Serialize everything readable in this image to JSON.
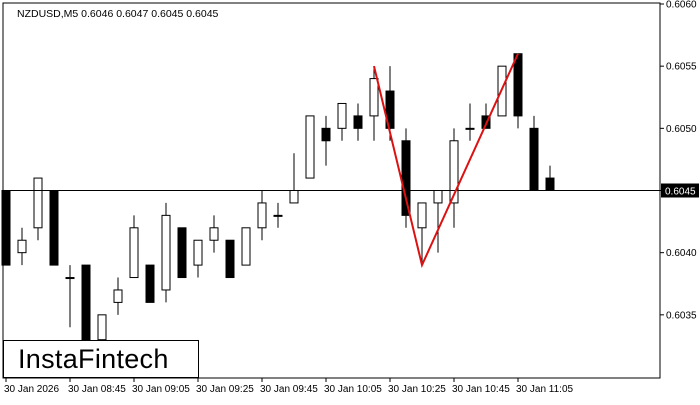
{
  "header": {
    "symbol_line": "NZDUSD,M5  0.6046 0.6047 0.6045 0.6045"
  },
  "logo": {
    "text": "InstaFintech"
  },
  "colors": {
    "background": "#ffffff",
    "axis": "#000000",
    "bull_body": "#ffffff",
    "bear_body": "#000000",
    "pattern_line": "#dd1111",
    "price_label_bg": "#000000",
    "price_label_text": "#ffffff"
  },
  "chart_data": {
    "type": "candlestick",
    "symbol": "NZDUSD",
    "timeframe": "M5",
    "ylim": [
      0.603,
      0.606
    ],
    "y_ticks": [
      "0.6060",
      "0.6055",
      "0.6050",
      "0.6045",
      "0.6040",
      "0.6035"
    ],
    "x_ticks": [
      {
        "label": "30 Jan 2026",
        "index": 0
      },
      {
        "label": "30 Jan 08:45",
        "index": 4
      },
      {
        "label": "30 Jan 09:05",
        "index": 8
      },
      {
        "label": "30 Jan 09:25",
        "index": 12
      },
      {
        "label": "30 Jan 09:45",
        "index": 16
      },
      {
        "label": "30 Jan 10:05",
        "index": 20
      },
      {
        "label": "30 Jan 10:25",
        "index": 24
      },
      {
        "label": "30 Jan 10:45",
        "index": 28
      },
      {
        "label": "30 Jan 11:05",
        "index": 32
      }
    ],
    "current_price": {
      "value": 0.6045,
      "label": "0.6045"
    },
    "candles": [
      {
        "o": 0.6045,
        "h": 0.6045,
        "l": 0.6039,
        "c": 0.6039
      },
      {
        "o": 0.604,
        "h": 0.6042,
        "l": 0.6039,
        "c": 0.6041
      },
      {
        "o": 0.6042,
        "h": 0.6046,
        "l": 0.6041,
        "c": 0.6046
      },
      {
        "o": 0.6045,
        "h": 0.6045,
        "l": 0.6039,
        "c": 0.6039
      },
      {
        "o": 0.6038,
        "h": 0.6039,
        "l": 0.6034,
        "c": 0.6038
      },
      {
        "o": 0.6039,
        "h": 0.6039,
        "l": 0.6033,
        "c": 0.6033
      },
      {
        "o": 0.6033,
        "h": 0.6035,
        "l": 0.6031,
        "c": 0.6035
      },
      {
        "o": 0.6036,
        "h": 0.6038,
        "l": 0.6035,
        "c": 0.6037
      },
      {
        "o": 0.6038,
        "h": 0.6043,
        "l": 0.6038,
        "c": 0.6042
      },
      {
        "o": 0.6039,
        "h": 0.6039,
        "l": 0.6036,
        "c": 0.6036
      },
      {
        "o": 0.6037,
        "h": 0.6044,
        "l": 0.6036,
        "c": 0.6043
      },
      {
        "o": 0.6042,
        "h": 0.6042,
        "l": 0.6038,
        "c": 0.6038
      },
      {
        "o": 0.6039,
        "h": 0.6041,
        "l": 0.6038,
        "c": 0.6041
      },
      {
        "o": 0.6041,
        "h": 0.6043,
        "l": 0.604,
        "c": 0.6042
      },
      {
        "o": 0.6041,
        "h": 0.6041,
        "l": 0.6038,
        "c": 0.6038
      },
      {
        "o": 0.6039,
        "h": 0.6042,
        "l": 0.6039,
        "c": 0.6042
      },
      {
        "o": 0.6042,
        "h": 0.6045,
        "l": 0.6041,
        "c": 0.6044
      },
      {
        "o": 0.6043,
        "h": 0.6044,
        "l": 0.6042,
        "c": 0.6043
      },
      {
        "o": 0.6044,
        "h": 0.6048,
        "l": 0.6044,
        "c": 0.6045
      },
      {
        "o": 0.6046,
        "h": 0.6051,
        "l": 0.6046,
        "c": 0.6051
      },
      {
        "o": 0.605,
        "h": 0.6051,
        "l": 0.6047,
        "c": 0.6049
      },
      {
        "o": 0.605,
        "h": 0.6052,
        "l": 0.6049,
        "c": 0.6052
      },
      {
        "o": 0.6051,
        "h": 0.6052,
        "l": 0.6049,
        "c": 0.605
      },
      {
        "o": 0.6051,
        "h": 0.6055,
        "l": 0.6049,
        "c": 0.6054
      },
      {
        "o": 0.6053,
        "h": 0.6055,
        "l": 0.6049,
        "c": 0.605
      },
      {
        "o": 0.6049,
        "h": 0.605,
        "l": 0.6042,
        "c": 0.6043
      },
      {
        "o": 0.6042,
        "h": 0.6044,
        "l": 0.6039,
        "c": 0.6044
      },
      {
        "o": 0.6044,
        "h": 0.6045,
        "l": 0.604,
        "c": 0.6045
      },
      {
        "o": 0.6044,
        "h": 0.605,
        "l": 0.6042,
        "c": 0.6049
      },
      {
        "o": 0.605,
        "h": 0.6052,
        "l": 0.6049,
        "c": 0.605
      },
      {
        "o": 0.6051,
        "h": 0.6052,
        "l": 0.605,
        "c": 0.605
      },
      {
        "o": 0.6051,
        "h": 0.6055,
        "l": 0.6051,
        "c": 0.6055
      },
      {
        "o": 0.6056,
        "h": 0.6056,
        "l": 0.605,
        "c": 0.6051
      },
      {
        "o": 0.605,
        "h": 0.6051,
        "l": 0.6045,
        "c": 0.6045
      },
      {
        "o": 0.6046,
        "h": 0.6047,
        "l": 0.6045,
        "c": 0.6045
      }
    ],
    "pattern_line": [
      {
        "index": 23,
        "price": 0.6055
      },
      {
        "index": 26,
        "price": 0.6039
      },
      {
        "index": 32,
        "price": 0.6056
      }
    ]
  }
}
